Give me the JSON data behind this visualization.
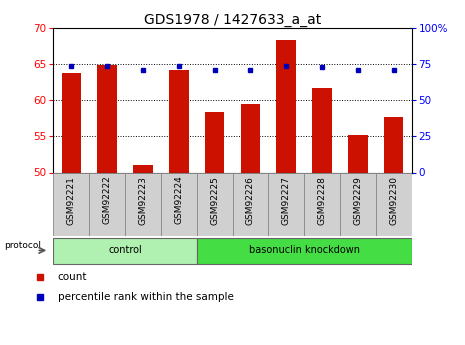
{
  "title": "GDS1978 / 1427633_a_at",
  "samples": [
    "GSM92221",
    "GSM92222",
    "GSM92223",
    "GSM92224",
    "GSM92225",
    "GSM92226",
    "GSM92227",
    "GSM92228",
    "GSM92229",
    "GSM92230"
  ],
  "count_values": [
    63.8,
    64.8,
    51.1,
    64.2,
    58.3,
    59.5,
    68.3,
    61.7,
    55.2,
    57.7
  ],
  "percentile_values": [
    73.5,
    73.5,
    70.5,
    73.5,
    70.5,
    70.5,
    73.5,
    72.5,
    70.5,
    70.5
  ],
  "groups": [
    {
      "label": "control",
      "start": 0,
      "end": 4,
      "color": "#b0f0b0"
    },
    {
      "label": "basonuclin knockdown",
      "start": 4,
      "end": 10,
      "color": "#44dd44"
    }
  ],
  "ylim_left": [
    50,
    70
  ],
  "ylim_right": [
    0,
    100
  ],
  "yticks_left": [
    50,
    55,
    60,
    65,
    70
  ],
  "yticks_right": [
    0,
    25,
    50,
    75,
    100
  ],
  "bar_color": "#cc1100",
  "dot_color": "#0000bb",
  "bar_width": 0.55,
  "grid_yticks": [
    55,
    60,
    65
  ],
  "legend_count_label": "count",
  "legend_pct_label": "percentile rank within the sample",
  "protocol_label": "protocol",
  "title_fontsize": 10,
  "tick_fontsize": 7.5,
  "xtick_fontsize": 6.5
}
